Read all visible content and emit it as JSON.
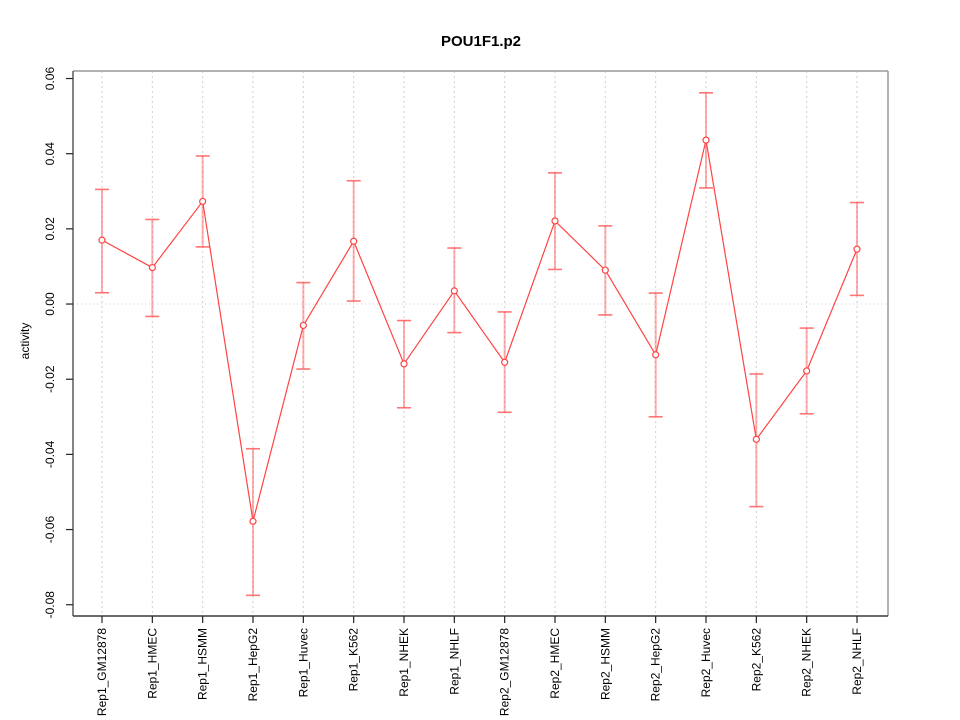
{
  "figure": {
    "background_color": "#ffffff"
  },
  "chart_data": {
    "type": "line",
    "title": "POU1F1.p2",
    "xlabel": "",
    "ylabel": "activity",
    "ylim": [
      -0.083,
      0.062
    ],
    "yticks": [
      -0.08,
      -0.06,
      -0.04,
      -0.02,
      0.0,
      0.02,
      0.04,
      0.06
    ],
    "grid": "vertical-dashed-at-each-category",
    "zero_reference_line": true,
    "legend_position": "none",
    "marker": "open-circle",
    "categories": [
      "Rep1_GM12878",
      "Rep1_HMEC",
      "Rep1_HSMM",
      "Rep1_HepG2",
      "Rep1_Huvec",
      "Rep1_K562",
      "Rep1_NHEK",
      "Rep1_NHLF",
      "Rep2_GM12878",
      "Rep2_HMEC",
      "Rep2_HSMM",
      "Rep2_HepG2",
      "Rep2_Huvec",
      "Rep2_K562",
      "Rep2_NHEK",
      "Rep2_NHLF"
    ],
    "series": [
      {
        "name": "activity",
        "values": [
          0.017,
          0.0097,
          0.0273,
          -0.0578,
          -0.0057,
          0.0167,
          -0.0159,
          0.0035,
          -0.0155,
          0.0221,
          0.009,
          -0.0135,
          0.0436,
          -0.036,
          -0.0178,
          0.0146
        ],
        "error_low": [
          0.003,
          -0.0033,
          0.0152,
          -0.0775,
          -0.0173,
          0.0008,
          -0.0276,
          -0.0076,
          -0.0288,
          0.0092,
          -0.0029,
          -0.03,
          0.0309,
          -0.0539,
          -0.0292,
          0.0023
        ],
        "error_high": [
          0.0305,
          0.0225,
          0.0394,
          -0.0385,
          0.0057,
          0.0328,
          -0.0044,
          0.0149,
          -0.0021,
          0.0349,
          0.0208,
          0.0029,
          0.0562,
          -0.0186,
          -0.0064,
          0.027
        ]
      }
    ],
    "colors": {
      "series_line": "#ff4343",
      "error_bar": "#ff5c5c",
      "grid_line": "#cfcfcf",
      "zero_line": "#c8c8c8",
      "axis_box": "#8c8c8c",
      "tick": "#222222"
    }
  }
}
